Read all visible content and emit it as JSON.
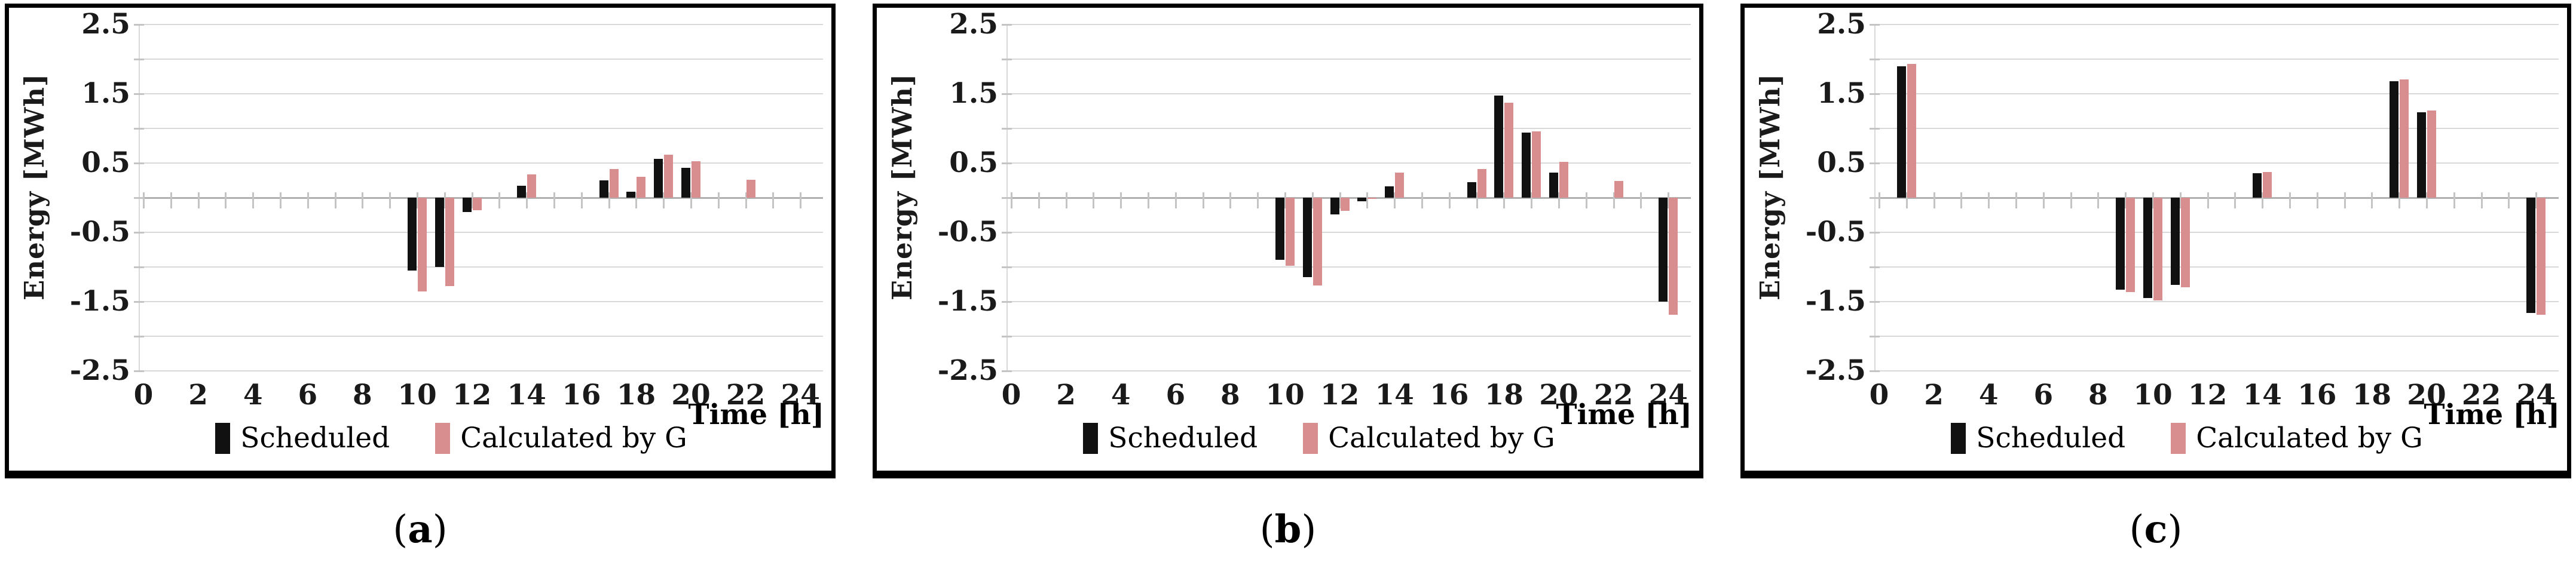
{
  "figure": {
    "y_axis_title": "Energy [MWh]",
    "x_axis_title": "Time [h]",
    "legend_scheduled_label": "Scheduled",
    "legend_calculated_label": "Calculated by G",
    "series_colors": {
      "scheduled": "#111111",
      "calculated": "#D88E8F"
    },
    "grid_color": "#d9d9d9",
    "zero_axis_color": "#b0b0b0",
    "tick_color": "#c4c4c4",
    "y_tick_labels": [
      "2.5",
      "1.5",
      "0.5",
      "-0.5",
      "-1.5",
      "-2.5"
    ],
    "x_tick_labels": [
      "0",
      "2",
      "4",
      "6",
      "8",
      "10",
      "12",
      "14",
      "16",
      "18",
      "20",
      "22",
      "24"
    ],
    "caption_open": "(",
    "caption_close": ")"
  },
  "captions": [
    "a",
    "b",
    "c"
  ],
  "chart_data": [
    {
      "type": "bar",
      "caption": "(a)",
      "xlabel": "Time [h]",
      "ylabel": "Energy [MWh]",
      "ylim": [
        -2.5,
        2.5
      ],
      "ytick_step": 0.5,
      "x_hours_range": [
        0,
        24
      ],
      "grid": true,
      "legend_position": "bottom",
      "series": [
        {
          "name": "Scheduled",
          "key": "scheduled",
          "values": [
            null,
            null,
            null,
            null,
            null,
            null,
            null,
            null,
            null,
            null,
            -1.05,
            -1.0,
            -0.21,
            null,
            0.17,
            null,
            null,
            0.25,
            0.09,
            0.56,
            0.43,
            null,
            null,
            null,
            null
          ]
        },
        {
          "name": "Calculated by G",
          "key": "calculated",
          "values": [
            null,
            null,
            null,
            null,
            null,
            null,
            null,
            null,
            null,
            null,
            -1.35,
            -1.28,
            -0.18,
            null,
            0.34,
            null,
            null,
            0.41,
            0.3,
            0.62,
            0.53,
            null,
            0.26,
            null,
            null
          ]
        }
      ]
    },
    {
      "type": "bar",
      "caption": "(b)",
      "xlabel": "Time [h]",
      "ylabel": "Energy [MWh]",
      "ylim": [
        -2.5,
        2.5
      ],
      "ytick_step": 0.5,
      "x_hours_range": [
        0,
        24
      ],
      "grid": true,
      "legend_position": "bottom",
      "series": [
        {
          "name": "Scheduled",
          "key": "scheduled",
          "values": [
            null,
            null,
            null,
            null,
            null,
            null,
            null,
            null,
            null,
            null,
            -0.9,
            -1.15,
            -0.24,
            -0.05,
            0.16,
            null,
            null,
            0.22,
            1.47,
            0.94,
            0.36,
            null,
            null,
            null,
            -1.5
          ]
        },
        {
          "name": "Calculated by G",
          "key": "calculated",
          "values": [
            null,
            null,
            null,
            null,
            null,
            null,
            null,
            null,
            null,
            null,
            -0.98,
            -1.27,
            -0.19,
            -0.02,
            0.36,
            null,
            null,
            0.41,
            1.37,
            0.96,
            0.52,
            null,
            0.24,
            null,
            -1.69
          ]
        }
      ]
    },
    {
      "type": "bar",
      "caption": "(c)",
      "xlabel": "Time [h]",
      "ylabel": "Energy [MWh]",
      "ylim": [
        -2.5,
        2.5
      ],
      "ytick_step": 0.5,
      "x_hours_range": [
        0,
        24
      ],
      "grid": true,
      "legend_position": "bottom",
      "series": [
        {
          "name": "Scheduled",
          "key": "scheduled",
          "values": [
            null,
            1.9,
            null,
            null,
            null,
            null,
            null,
            null,
            null,
            -1.33,
            -1.45,
            -1.26,
            null,
            null,
            0.35,
            null,
            null,
            null,
            null,
            1.68,
            1.23,
            null,
            null,
            null,
            -1.66
          ]
        },
        {
          "name": "Calculated by G",
          "key": "calculated",
          "values": [
            null,
            1.93,
            null,
            null,
            null,
            null,
            null,
            null,
            null,
            -1.36,
            -1.48,
            -1.29,
            null,
            null,
            0.37,
            null,
            null,
            null,
            null,
            1.71,
            1.26,
            null,
            null,
            null,
            -1.69
          ]
        }
      ]
    }
  ]
}
